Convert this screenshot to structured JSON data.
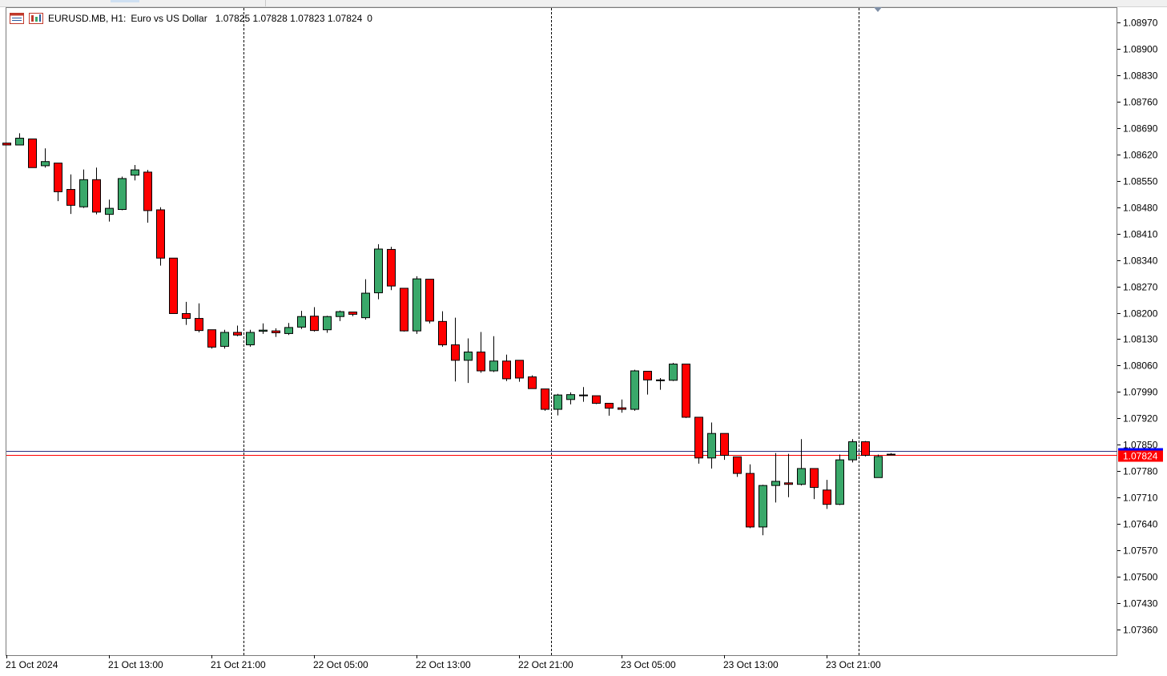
{
  "header": {
    "symbol": "EURUSD.MB, H1:",
    "description": "Euro vs US Dollar",
    "ohlc": "1.07825 1.07828 1.07823 1.07824",
    "volume": "0"
  },
  "colors": {
    "bull": "#3aa86a",
    "bear": "#ff0000",
    "wick": "#000000",
    "bid_line": "#ff0000",
    "ask_line": "#2a2f80",
    "price_tag_bg": "#ff0000",
    "ask_tag_bg": "#0000ff"
  },
  "chart_data": {
    "type": "candlestick",
    "symbol": "EURUSD.MB",
    "timeframe": "H1",
    "ylim": [
      1.0729,
      1.0904
    ],
    "y_ticks": [
      "1.08970",
      "1.08900",
      "1.08830",
      "1.08760",
      "1.08690",
      "1.08620",
      "1.08550",
      "1.08480",
      "1.08410",
      "1.08340",
      "1.08270",
      "1.08200",
      "1.08130",
      "1.08060",
      "1.07990",
      "1.07920",
      "1.07850",
      "1.07780",
      "1.07710",
      "1.07640",
      "1.07570",
      "1.07500",
      "1.07430",
      "1.07360"
    ],
    "x_labels": [
      {
        "index": 0,
        "label": "21 Oct 2024"
      },
      {
        "index": 8,
        "label": "21 Oct 13:00"
      },
      {
        "index": 16,
        "label": "21 Oct 21:00"
      },
      {
        "index": 24,
        "label": "22 Oct 05:00"
      },
      {
        "index": 32,
        "label": "22 Oct 13:00"
      },
      {
        "index": 40,
        "label": "22 Oct 21:00"
      },
      {
        "index": 48,
        "label": "23 Oct 05:00"
      },
      {
        "index": 56,
        "label": "23 Oct 13:00"
      },
      {
        "index": 64,
        "label": "23 Oct 21:00"
      }
    ],
    "day_separators": [
      18.5,
      42.5,
      66.5
    ],
    "bid_price": 1.07824,
    "ask_price": 1.07834,
    "current_price_label": "1.07824",
    "candles": [
      {
        "o": 1.0865,
        "h": 1.0865,
        "l": 1.08645,
        "c": 1.08645
      },
      {
        "o": 1.08645,
        "h": 1.08676,
        "l": 1.08644,
        "c": 1.08663
      },
      {
        "o": 1.08661,
        "h": 1.08661,
        "l": 1.08585,
        "c": 1.08585
      },
      {
        "o": 1.0859,
        "h": 1.08636,
        "l": 1.08585,
        "c": 1.08601
      },
      {
        "o": 1.08597,
        "h": 1.08597,
        "l": 1.08496,
        "c": 1.08521
      },
      {
        "o": 1.08527,
        "h": 1.08567,
        "l": 1.08462,
        "c": 1.08485
      },
      {
        "o": 1.08481,
        "h": 1.0858,
        "l": 1.08478,
        "c": 1.08553
      },
      {
        "o": 1.08553,
        "h": 1.08585,
        "l": 1.08461,
        "c": 1.08467
      },
      {
        "o": 1.08461,
        "h": 1.085,
        "l": 1.08442,
        "c": 1.08477
      },
      {
        "o": 1.08474,
        "h": 1.08561,
        "l": 1.08472,
        "c": 1.08556
      },
      {
        "o": 1.08565,
        "h": 1.08592,
        "l": 1.08551,
        "c": 1.08579
      },
      {
        "o": 1.08573,
        "h": 1.08579,
        "l": 1.08439,
        "c": 1.08471
      },
      {
        "o": 1.08473,
        "h": 1.0848,
        "l": 1.08325,
        "c": 1.08345
      },
      {
        "o": 1.08345,
        "h": 1.08345,
        "l": 1.08198,
        "c": 1.08198
      },
      {
        "o": 1.08198,
        "h": 1.08229,
        "l": 1.08168,
        "c": 1.08185
      },
      {
        "o": 1.08185,
        "h": 1.08225,
        "l": 1.08148,
        "c": 1.08153
      },
      {
        "o": 1.08155,
        "h": 1.08155,
        "l": 1.08105,
        "c": 1.08109
      },
      {
        "o": 1.08111,
        "h": 1.08155,
        "l": 1.08105,
        "c": 1.08148
      },
      {
        "o": 1.08148,
        "h": 1.08166,
        "l": 1.08138,
        "c": 1.08141
      },
      {
        "o": 1.08115,
        "h": 1.08155,
        "l": 1.0811,
        "c": 1.08148
      },
      {
        "o": 1.08151,
        "h": 1.08172,
        "l": 1.08144,
        "c": 1.08154
      },
      {
        "o": 1.08152,
        "h": 1.08159,
        "l": 1.08136,
        "c": 1.08147
      },
      {
        "o": 1.08145,
        "h": 1.08173,
        "l": 1.08141,
        "c": 1.08161
      },
      {
        "o": 1.08162,
        "h": 1.08205,
        "l": 1.08157,
        "c": 1.0819
      },
      {
        "o": 1.08191,
        "h": 1.08215,
        "l": 1.0815,
        "c": 1.08153
      },
      {
        "o": 1.08155,
        "h": 1.08192,
        "l": 1.08147,
        "c": 1.0819
      },
      {
        "o": 1.0819,
        "h": 1.08206,
        "l": 1.08178,
        "c": 1.08203
      },
      {
        "o": 1.08202,
        "h": 1.08202,
        "l": 1.08191,
        "c": 1.08196
      },
      {
        "o": 1.08187,
        "h": 1.08289,
        "l": 1.08182,
        "c": 1.08252
      },
      {
        "o": 1.08253,
        "h": 1.08382,
        "l": 1.08236,
        "c": 1.08369
      },
      {
        "o": 1.08368,
        "h": 1.08375,
        "l": 1.0826,
        "c": 1.08271
      },
      {
        "o": 1.08265,
        "h": 1.08265,
        "l": 1.0815,
        "c": 1.08152
      },
      {
        "o": 1.08152,
        "h": 1.08297,
        "l": 1.08144,
        "c": 1.0829
      },
      {
        "o": 1.08289,
        "h": 1.08289,
        "l": 1.08172,
        "c": 1.08178
      },
      {
        "o": 1.08177,
        "h": 1.08204,
        "l": 1.0811,
        "c": 1.08115
      },
      {
        "o": 1.08115,
        "h": 1.08187,
        "l": 1.08018,
        "c": 1.08074
      },
      {
        "o": 1.08074,
        "h": 1.08132,
        "l": 1.08014,
        "c": 1.08096
      },
      {
        "o": 1.08096,
        "h": 1.08149,
        "l": 1.08041,
        "c": 1.08046
      },
      {
        "o": 1.08046,
        "h": 1.08138,
        "l": 1.08043,
        "c": 1.08072
      },
      {
        "o": 1.08072,
        "h": 1.08089,
        "l": 1.08019,
        "c": 1.08025
      },
      {
        "o": 1.08074,
        "h": 1.08074,
        "l": 1.08017,
        "c": 1.08027
      },
      {
        "o": 1.0803,
        "h": 1.08034,
        "l": 1.07999,
        "c": 1.07999
      },
      {
        "o": 1.07998,
        "h": 1.07998,
        "l": 1.0794,
        "c": 1.07944
      },
      {
        "o": 1.07944,
        "h": 1.07985,
        "l": 1.07928,
        "c": 1.07982
      },
      {
        "o": 1.0797,
        "h": 1.07989,
        "l": 1.07957,
        "c": 1.07983
      },
      {
        "o": 1.07982,
        "h": 1.08003,
        "l": 1.07964,
        "c": 1.07981
      },
      {
        "o": 1.0798,
        "h": 1.0798,
        "l": 1.07958,
        "c": 1.0796
      },
      {
        "o": 1.0796,
        "h": 1.0796,
        "l": 1.07927,
        "c": 1.07947
      },
      {
        "o": 1.07948,
        "h": 1.0797,
        "l": 1.07935,
        "c": 1.07944
      },
      {
        "o": 1.07944,
        "h": 1.08049,
        "l": 1.0794,
        "c": 1.08046
      },
      {
        "o": 1.08045,
        "h": 1.08045,
        "l": 1.07983,
        "c": 1.08022
      },
      {
        "o": 1.08022,
        "h": 1.08027,
        "l": 1.07996,
        "c": 1.08022
      },
      {
        "o": 1.08021,
        "h": 1.08067,
        "l": 1.08019,
        "c": 1.08064
      },
      {
        "o": 1.08064,
        "h": 1.08064,
        "l": 1.07921,
        "c": 1.07923
      },
      {
        "o": 1.07923,
        "h": 1.07923,
        "l": 1.078,
        "c": 1.07815
      },
      {
        "o": 1.07815,
        "h": 1.07909,
        "l": 1.07787,
        "c": 1.0788
      },
      {
        "o": 1.0788,
        "h": 1.0788,
        "l": 1.0781,
        "c": 1.07822
      },
      {
        "o": 1.07818,
        "h": 1.07818,
        "l": 1.07765,
        "c": 1.07774
      },
      {
        "o": 1.07774,
        "h": 1.07798,
        "l": 1.07629,
        "c": 1.07632
      },
      {
        "o": 1.07632,
        "h": 1.07744,
        "l": 1.0761,
        "c": 1.07742
      },
      {
        "o": 1.07742,
        "h": 1.07828,
        "l": 1.07697,
        "c": 1.07753
      },
      {
        "o": 1.07749,
        "h": 1.07826,
        "l": 1.07711,
        "c": 1.07745
      },
      {
        "o": 1.07745,
        "h": 1.07865,
        "l": 1.07742,
        "c": 1.07787
      },
      {
        "o": 1.07787,
        "h": 1.07787,
        "l": 1.07706,
        "c": 1.07737
      },
      {
        "o": 1.0773,
        "h": 1.07757,
        "l": 1.0768,
        "c": 1.07692
      },
      {
        "o": 1.07692,
        "h": 1.07824,
        "l": 1.0769,
        "c": 1.0781
      },
      {
        "o": 1.0781,
        "h": 1.07865,
        "l": 1.07803,
        "c": 1.07858
      },
      {
        "o": 1.07858,
        "h": 1.0786,
        "l": 1.07819,
        "c": 1.07822
      },
      {
        "o": 1.07763,
        "h": 1.07824,
        "l": 1.07763,
        "c": 1.07819
      },
      {
        "o": 1.07825,
        "h": 1.07828,
        "l": 1.07823,
        "c": 1.07824
      }
    ]
  }
}
